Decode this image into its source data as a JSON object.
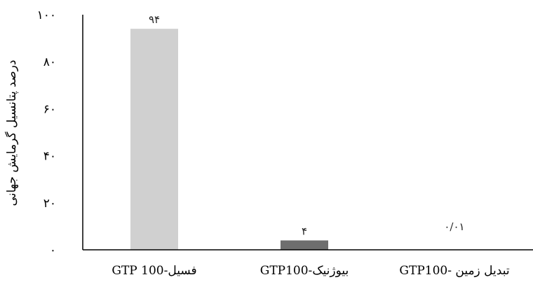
{
  "chart_data": {
    "type": "bar",
    "categories": [
      "GTP 100-فسیل",
      "GTP100-بیوژنیک",
      "GTP100- تبدیل زمین"
    ],
    "values": [
      94,
      4,
      0.01
    ],
    "data_labels": [
      "۹۴",
      "۴",
      "۰/۰۱"
    ],
    "bar_colors": [
      "#d0d0d0",
      "#6e6e6e",
      "#e0e0e0"
    ],
    "ylabel": "درصد پتانسیل گرمایش جهانی",
    "ylim": [
      0,
      100
    ],
    "yticks": [
      0,
      20,
      40,
      60,
      80,
      100
    ],
    "ytick_labels": [
      "۰",
      "۲۰",
      "۴۰",
      "۶۰",
      "۸۰",
      "۱۰۰"
    ],
    "grid": false,
    "legend": "none"
  }
}
